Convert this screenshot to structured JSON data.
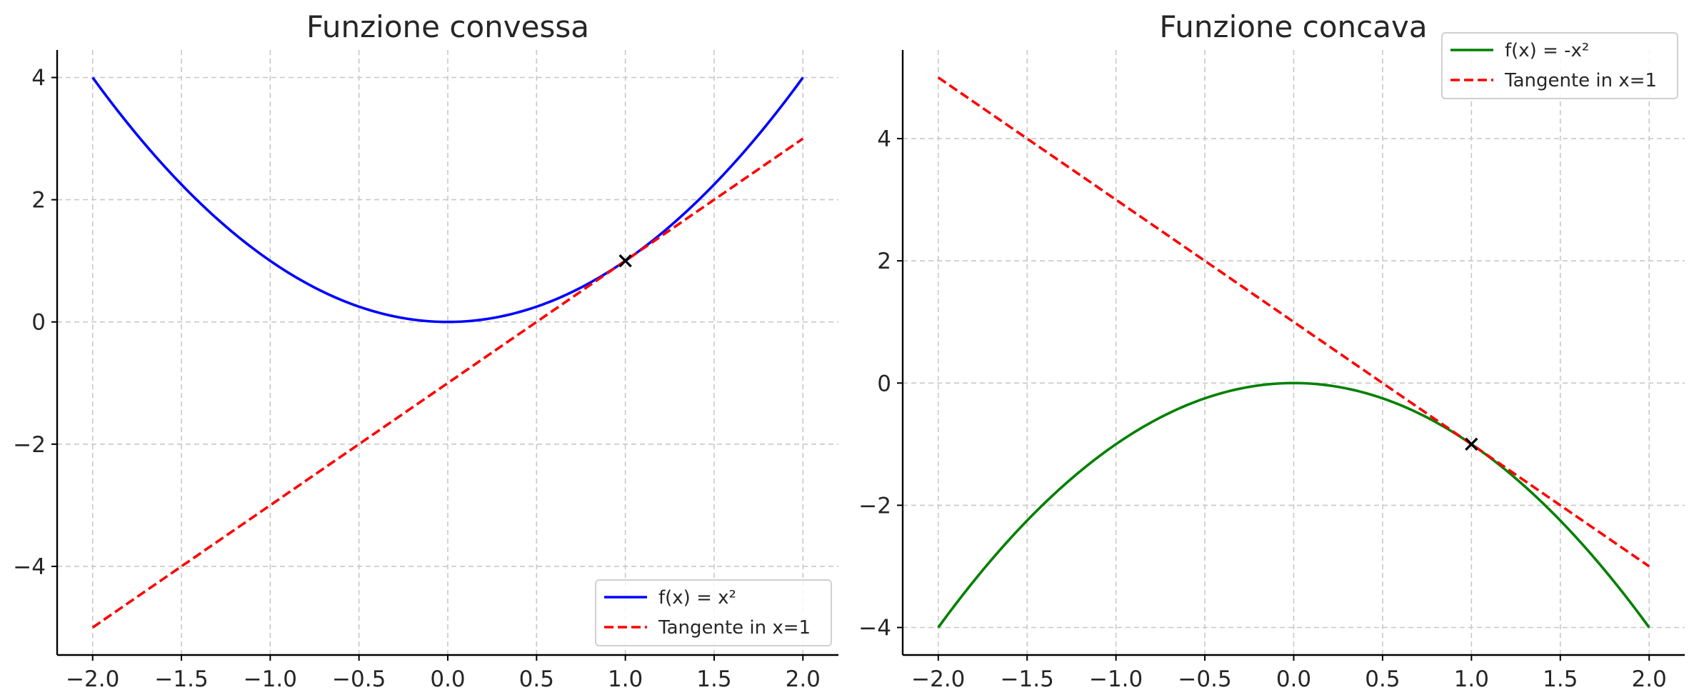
{
  "figure": {
    "background": "#ffffff"
  },
  "chart_data": [
    {
      "type": "line",
      "title": "Funzione convessa",
      "xlabel": "",
      "ylabel": "",
      "xlim": [
        -2.2,
        2.2
      ],
      "ylim": [
        -5.45,
        4.45
      ],
      "xticks": [
        -2.0,
        -1.5,
        -1.0,
        -0.5,
        0.0,
        0.5,
        1.0,
        1.5,
        2.0
      ],
      "xtick_labels": [
        "−2.0",
        "−1.5",
        "−1.0",
        "−0.5",
        "0.0",
        "0.5",
        "1.0",
        "1.5",
        "2.0"
      ],
      "yticks": [
        -4,
        -2,
        0,
        2,
        4
      ],
      "ytick_labels": [
        "−4",
        "−2",
        "0",
        "2",
        "4"
      ],
      "grid": true,
      "legend_position": "lower right",
      "series": [
        {
          "name": "f(x) = x²",
          "color": "#0000ff",
          "style": "solid",
          "x_range": [
            -2,
            2
          ],
          "expression": "x^2",
          "points": [
            [
              -2,
              4
            ],
            [
              -1.5,
              2.25
            ],
            [
              -1,
              1
            ],
            [
              -0.5,
              0.25
            ],
            [
              0,
              0
            ],
            [
              0.5,
              0.25
            ],
            [
              1,
              1
            ],
            [
              1.5,
              2.25
            ],
            [
              2,
              4
            ]
          ]
        },
        {
          "name": "Tangente in x=1",
          "color": "#ff0000",
          "style": "dashed",
          "x_range": [
            -2,
            2
          ],
          "expression": "2x - 1",
          "points": [
            [
              -2,
              -5
            ],
            [
              2,
              3
            ]
          ]
        }
      ],
      "marker": {
        "x": 1,
        "y": 1,
        "symbol": "x",
        "color": "#000000"
      }
    },
    {
      "type": "line",
      "title": "Funzione concava",
      "xlabel": "",
      "ylabel": "",
      "xlim": [
        -2.2,
        2.2
      ],
      "ylim": [
        -4.45,
        5.45
      ],
      "xticks": [
        -2.0,
        -1.5,
        -1.0,
        -0.5,
        0.0,
        0.5,
        1.0,
        1.5,
        2.0
      ],
      "xtick_labels": [
        "−2.0",
        "−1.5",
        "−1.0",
        "−0.5",
        "0.0",
        "0.5",
        "1.0",
        "1.5",
        "2.0"
      ],
      "yticks": [
        -4,
        -2,
        0,
        2,
        4
      ],
      "ytick_labels": [
        "−4",
        "−2",
        "0",
        "2",
        "4"
      ],
      "grid": true,
      "legend_position": "upper right",
      "series": [
        {
          "name": "f(x) = -x²",
          "color": "#008000",
          "style": "solid",
          "x_range": [
            -2,
            2
          ],
          "expression": "-x^2",
          "points": [
            [
              -2,
              -4
            ],
            [
              -1.5,
              -2.25
            ],
            [
              -1,
              -1
            ],
            [
              -0.5,
              -0.25
            ],
            [
              0,
              0
            ],
            [
              0.5,
              -0.25
            ],
            [
              1,
              -1
            ],
            [
              1.5,
              -2.25
            ],
            [
              2,
              -4
            ]
          ]
        },
        {
          "name": "Tangente in x=1",
          "color": "#ff0000",
          "style": "dashed",
          "x_range": [
            -2,
            2
          ],
          "expression": "-2x + 1",
          "points": [
            [
              -2,
              5
            ],
            [
              2,
              -3
            ]
          ]
        }
      ],
      "marker": {
        "x": 1,
        "y": -1,
        "symbol": "x",
        "color": "#000000"
      }
    }
  ]
}
